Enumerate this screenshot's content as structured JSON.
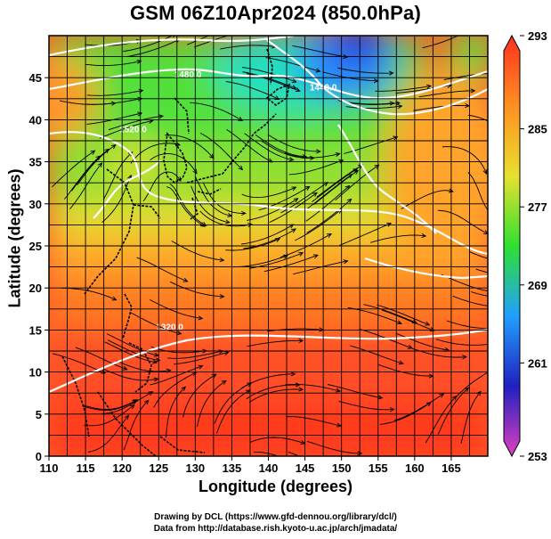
{
  "title": "GSM 06Z10Apr2024 (850.0hPa)",
  "chart_data": {
    "type": "heatmap",
    "title": "GSM 06Z10Apr2024 (850.0hPa)",
    "xlabel": "Longitude (degrees)",
    "ylabel": "Latitude  (degrees)",
    "xlim": [
      110,
      170
    ],
    "ylim": [
      0,
      50
    ],
    "x_ticks": [
      "110",
      "115",
      "120",
      "125",
      "130",
      "135",
      "140",
      "145",
      "150",
      "155",
      "160",
      "165"
    ],
    "y_ticks": [
      "0",
      "5",
      "10",
      "15",
      "20",
      "25",
      "30",
      "35",
      "40",
      "45"
    ],
    "grid": true,
    "colorbar": {
      "range": [
        253,
        293
      ],
      "ticks": [
        "253",
        "261",
        "269",
        "277",
        "285",
        "293"
      ],
      "colors": [
        "#e040c0",
        "#2020c0",
        "#20a0ff",
        "#30e030",
        "#e8e030",
        "#ff9020",
        "#ff3020"
      ]
    },
    "contours": [
      {
        "label": "1320.0",
        "lon": 126.5,
        "lat": 15.0
      },
      {
        "label": "1440.0",
        "lon": 147.5,
        "lat": 43.5
      },
      {
        "label": "1480.0",
        "lon": 129.0,
        "lat": 45.0
      },
      {
        "label": "1520.0",
        "lon": 121.5,
        "lat": 38.5
      }
    ],
    "overlays": [
      "streamlines",
      "coastlines",
      "geopotential height contours"
    ]
  },
  "credits": {
    "line1": "Drawing by DCL (https://www.gfd-dennou.org/library/dcl/)",
    "line2": "Data from http://database.rish.kyoto-u.ac.jp/arch/jmadata/"
  }
}
